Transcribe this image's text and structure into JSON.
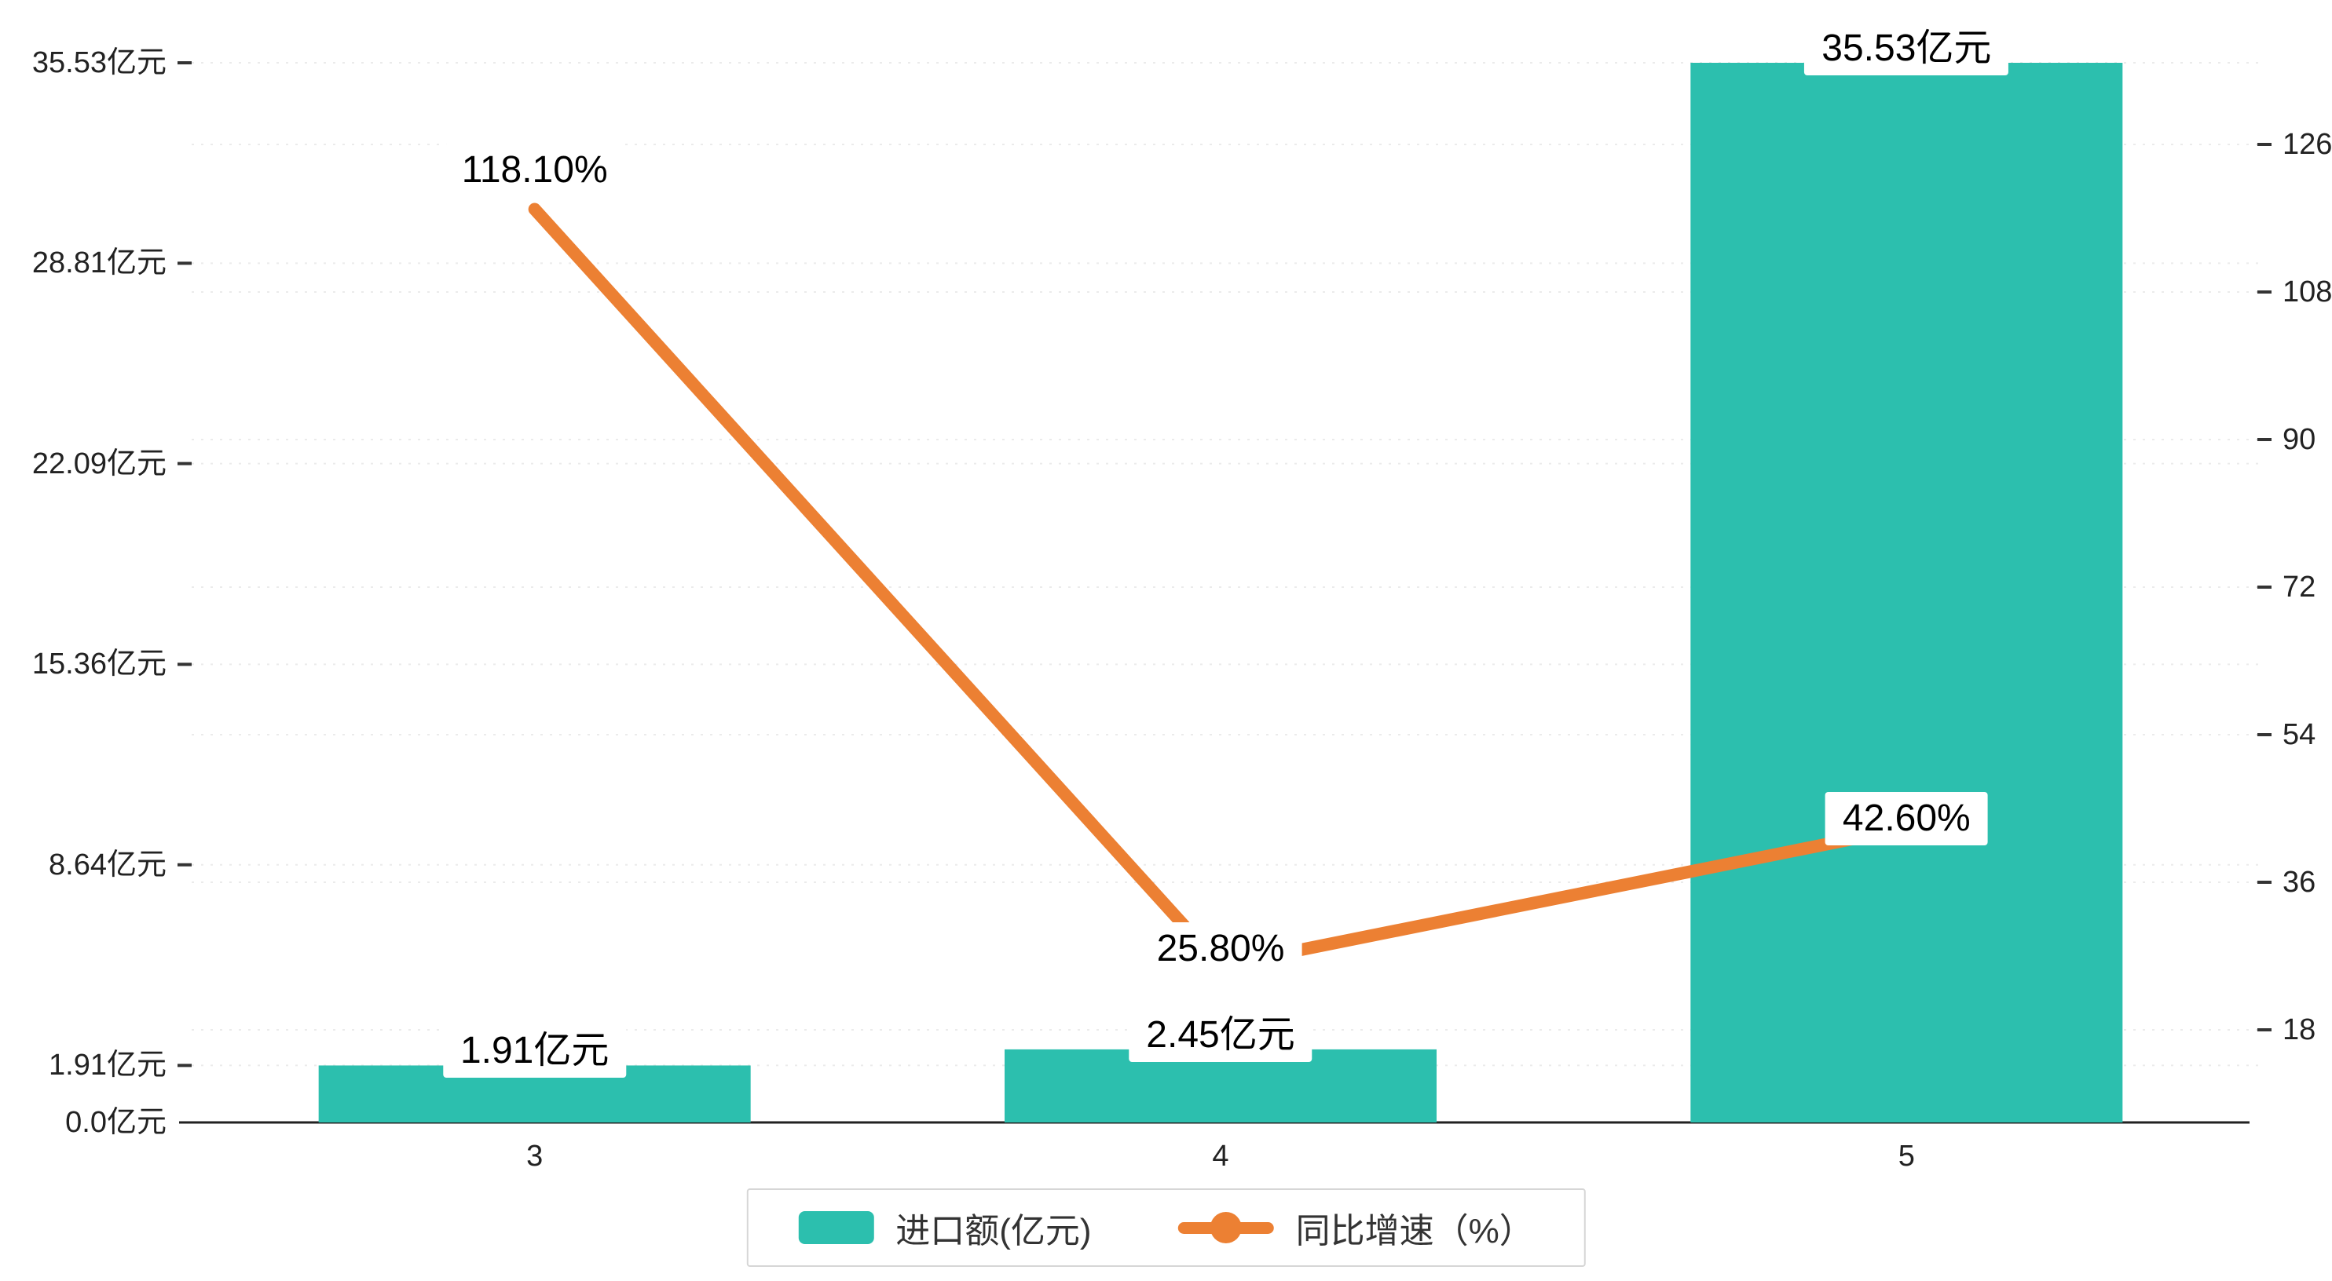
{
  "chart_data": {
    "type": "bar",
    "subtype": "bar+line-dual-axis",
    "categories": [
      "3",
      "4",
      "5"
    ],
    "series": [
      {
        "name": "进口额(亿元)",
        "type": "bar",
        "axis": "left",
        "color": "#2cbfae",
        "values": [
          1.91,
          2.45,
          35.53
        ],
        "labels": [
          "1.91亿元",
          "2.45亿元",
          "35.53亿元"
        ]
      },
      {
        "name": "同比增速（%）",
        "type": "line",
        "axis": "right",
        "color": "#ec8033",
        "values": [
          118.1,
          25.8,
          42.6
        ],
        "labels": [
          "118.10%",
          "25.80%",
          "42.60%"
        ]
      }
    ],
    "left_axis": {
      "max": 35.53,
      "ticks": [
        {
          "value": 0,
          "label": "0.0亿元"
        },
        {
          "value": 1.91,
          "label": "1.91亿元"
        },
        {
          "value": 8.64,
          "label": "8.64亿元"
        },
        {
          "value": 15.36,
          "label": "15.36亿元"
        },
        {
          "value": 22.09,
          "label": "22.09亿元"
        },
        {
          "value": 28.81,
          "label": "28.81亿元"
        },
        {
          "value": 35.53,
          "label": "35.53亿元"
        }
      ]
    },
    "right_axis": {
      "ticks": [
        18,
        36,
        54,
        72,
        90,
        108,
        126
      ]
    },
    "grid": true,
    "legend_position": "bottom"
  }
}
